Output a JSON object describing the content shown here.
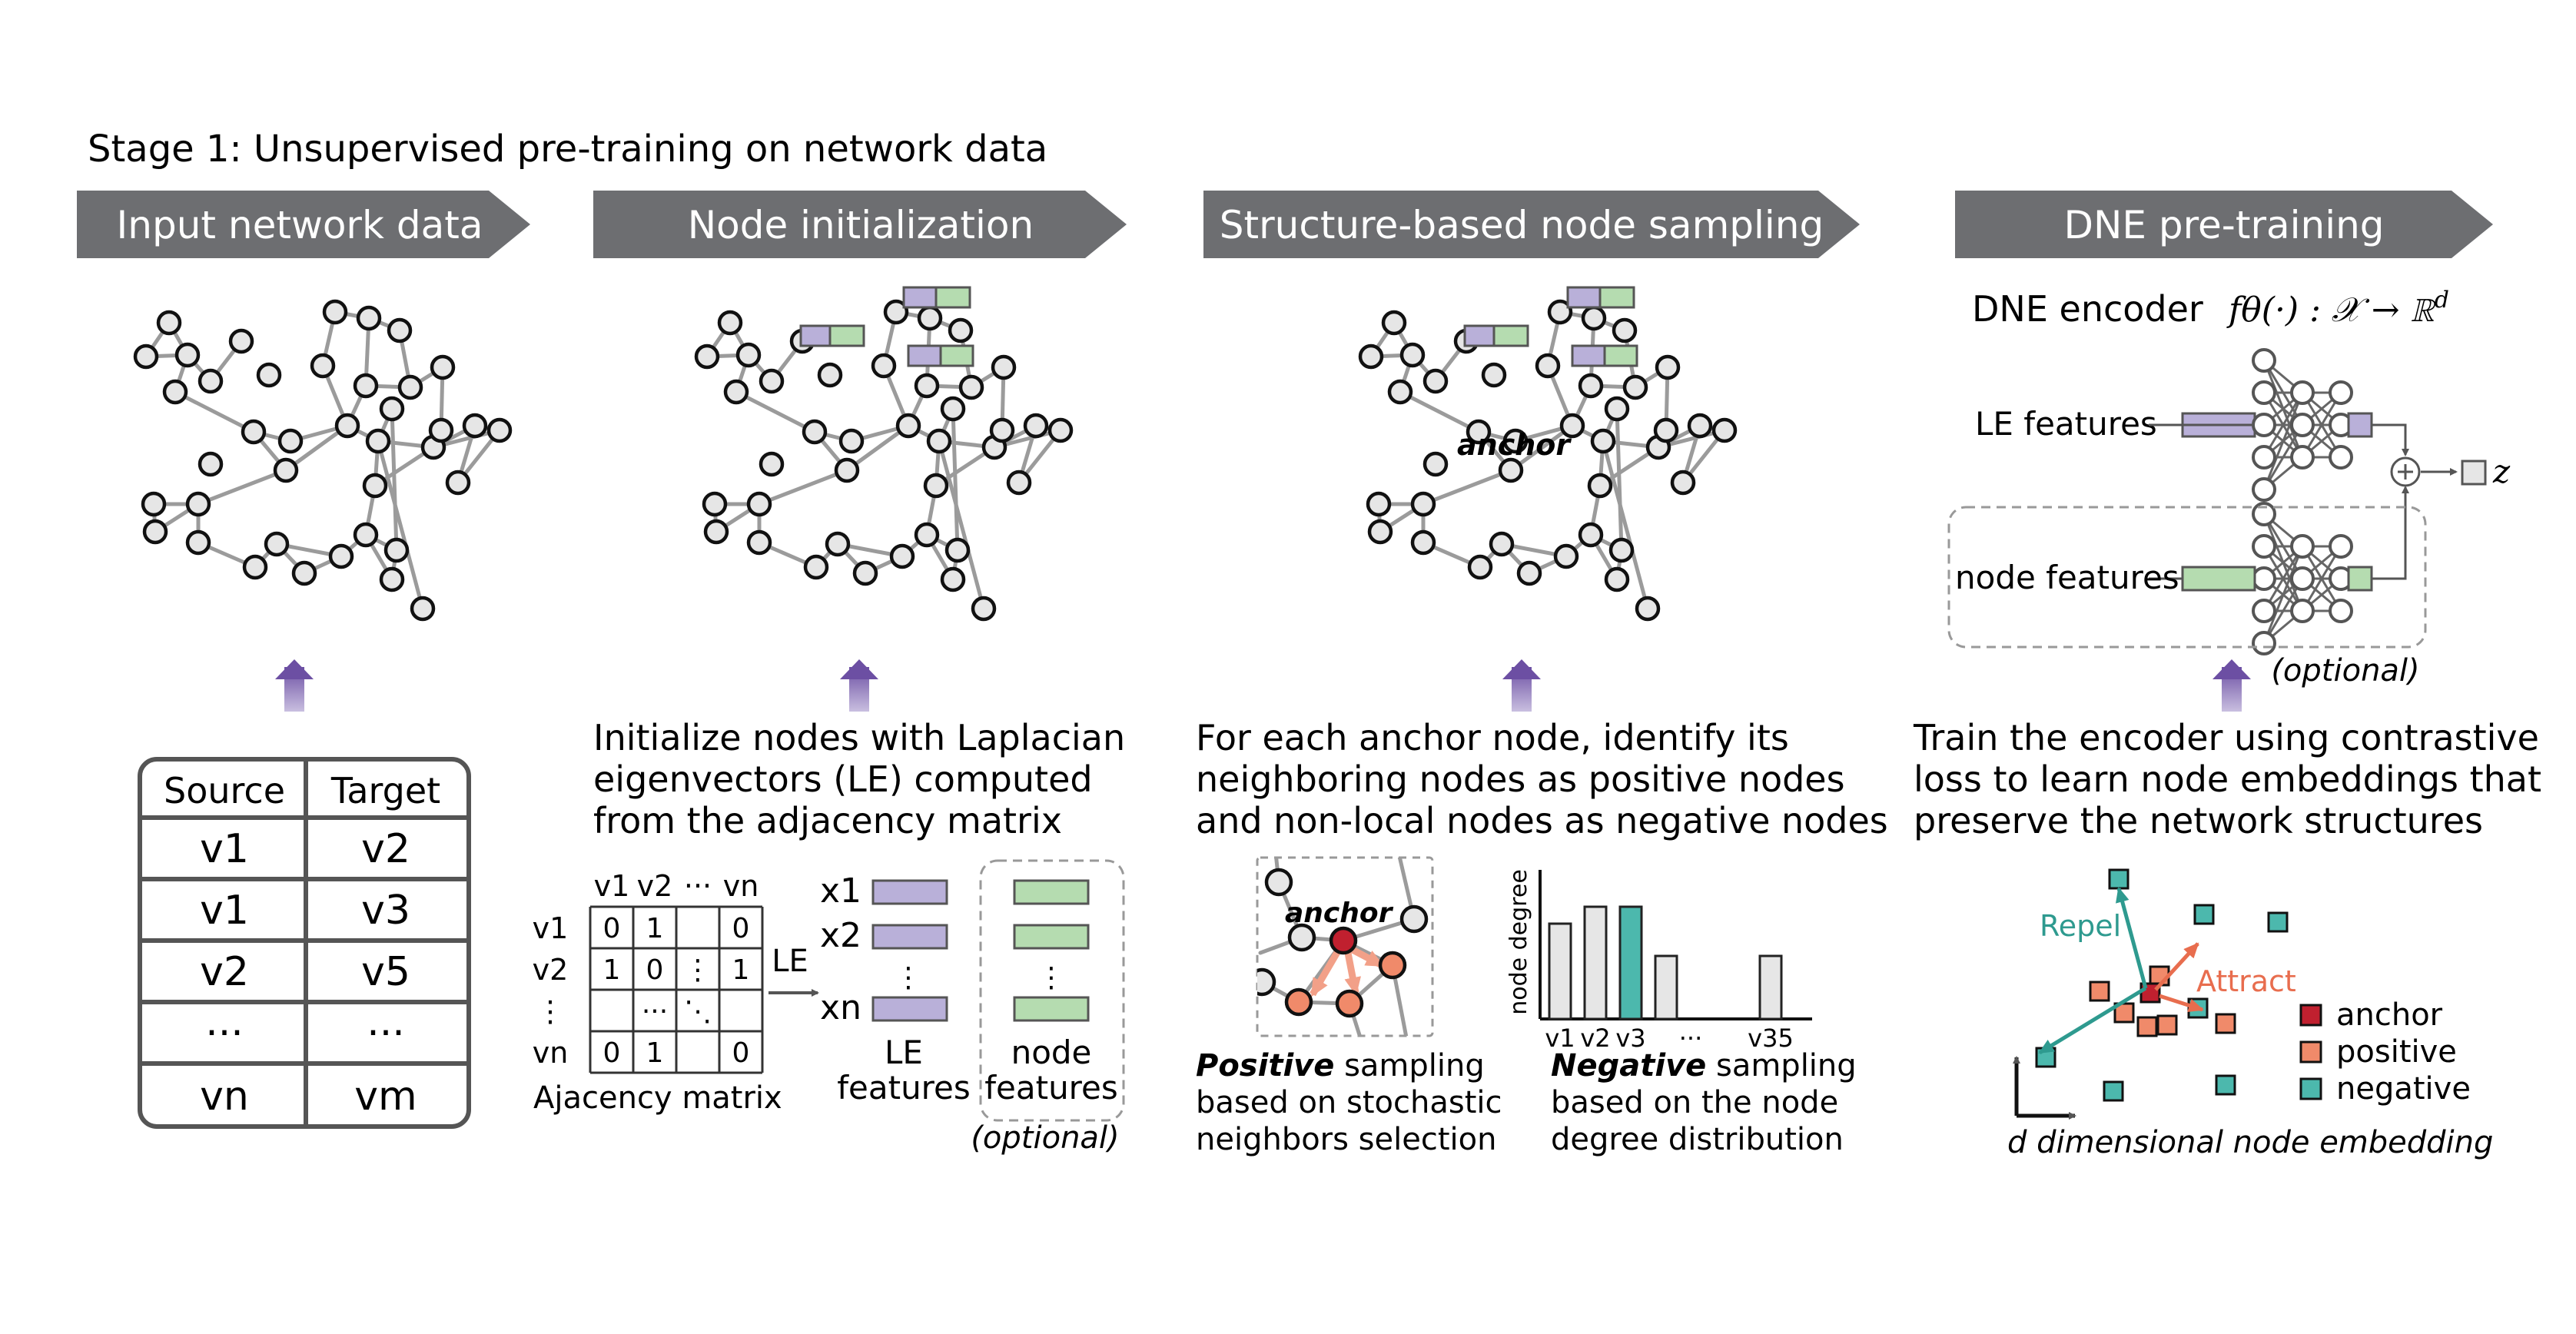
{
  "stage_title": "Stage 1: Unsupervised pre-training on network data",
  "steps": [
    {
      "label": "Input network data"
    },
    {
      "label": "Node initialization"
    },
    {
      "label": "Structure-based node sampling"
    },
    {
      "label": "DNE pre-training"
    }
  ],
  "edge_table": {
    "headers": [
      "Source",
      "Target"
    ],
    "rows": [
      {
        "source": "v1",
        "target": "v2"
      },
      {
        "source": "v1",
        "target": "v3"
      },
      {
        "source": "v2",
        "target": "v5"
      },
      {
        "source": "···",
        "target": "···"
      },
      {
        "source": "vn",
        "target": "vm"
      }
    ]
  },
  "init": {
    "desc": [
      "Initialize nodes with Laplacian",
      "eigenvectors (LE) computed",
      "from the adjacency matrix"
    ],
    "matrix_col_labels": [
      "v1",
      "v2",
      "···",
      "vn"
    ],
    "matrix_row_labels": [
      "v1",
      "v2",
      "⋮",
      "vn"
    ],
    "matrix_cells": [
      [
        "0",
        "1",
        "",
        "0"
      ],
      [
        "1",
        "0",
        "⋮",
        "1"
      ],
      [
        "",
        "···",
        "⋱",
        ""
      ],
      [
        "0",
        "1",
        "",
        "0"
      ]
    ],
    "matrix_caption": "Ajacency matrix",
    "le_arrow_label": "LE",
    "x_labels": [
      "x1",
      "x2",
      "⋮",
      "xn"
    ],
    "le_features_label": [
      "LE",
      "features"
    ],
    "node_features_label": [
      "node",
      "features"
    ],
    "node_features_dots": "⋮",
    "optional_label": "(optional)"
  },
  "sampling": {
    "desc": [
      "For each anchor node, identify its",
      "neighboring nodes as positive nodes",
      "and non-local nodes as negative nodes"
    ],
    "anchor_label": "anchor",
    "positive_caption": [
      "Positive",
      " sampling",
      "based on stochastic",
      "neighbors selection"
    ],
    "negative_caption": [
      "Negative",
      " sampling",
      "based on the node",
      "degree distribution"
    ],
    "hist_ylabel": "node degree",
    "hist_xlabels": [
      "v1",
      "v2",
      "v3",
      "···",
      "v35"
    ]
  },
  "pretrain": {
    "encoder_label": "DNE encoder",
    "encoder_formula": "fθ(·) : 𝒳 → ℝ",
    "encoder_formula_sup": "d",
    "le_features_label": "LE features",
    "node_features_label": "node features",
    "optional_label": "(optional)",
    "output_label": "z",
    "desc": [
      "Train the encoder using contrastive",
      "loss to learn node embeddings that",
      "preserve the network structures"
    ],
    "repel_label": "Repel",
    "attract_label": "Attract",
    "legend": [
      {
        "label": "anchor",
        "color": "#c0202f"
      },
      {
        "label": "positive",
        "color": "#f08a6a"
      },
      {
        "label": "negative",
        "color": "#4cb8ad"
      }
    ],
    "embedding_caption": "d dimensional node embedding"
  },
  "colors": {
    "arrow_gray": "#6d6e71",
    "up_arrow_purple": "#7b62a8",
    "le_purple": "#b9b0d9",
    "feature_green": "#b5dcb0",
    "anchor": "#c0202f",
    "positive": "#f08a6a",
    "negative": "#4cb8ad",
    "repel": "#2e9a8f",
    "attract": "#e86d4e"
  }
}
